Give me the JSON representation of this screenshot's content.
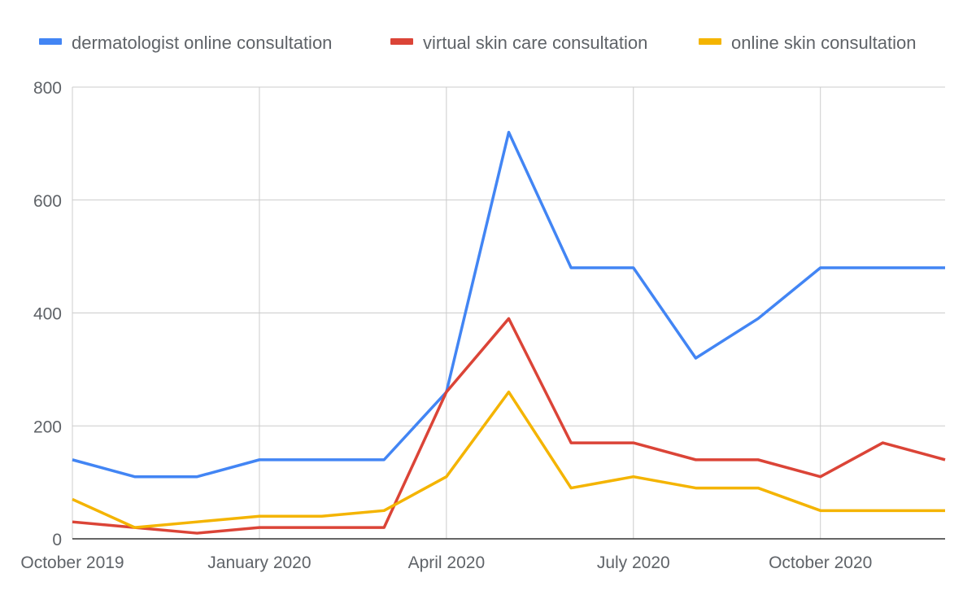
{
  "chart_data": {
    "type": "line",
    "title": "",
    "xlabel": "",
    "ylabel": "",
    "x": [
      "2019-10",
      "2019-11",
      "2019-12",
      "2020-01",
      "2020-02",
      "2020-03",
      "2020-04",
      "2020-05",
      "2020-06",
      "2020-07",
      "2020-08",
      "2020-09",
      "2020-10",
      "2020-11",
      "2020-12"
    ],
    "x_ticks": [
      {
        "index": 0,
        "label": "October 2019"
      },
      {
        "index": 3,
        "label": "January 2020"
      },
      {
        "index": 6,
        "label": "April 2020"
      },
      {
        "index": 9,
        "label": "July 2020"
      },
      {
        "index": 12,
        "label": "October 2020"
      }
    ],
    "ylim": [
      0,
      800
    ],
    "y_ticks": [
      0,
      200,
      400,
      600,
      800
    ],
    "grid": true,
    "legend_position": "top",
    "series": [
      {
        "name": "dermatologist online consultation",
        "color": "#4285f4",
        "values": [
          140,
          110,
          110,
          140,
          140,
          140,
          260,
          720,
          480,
          480,
          320,
          390,
          480,
          480,
          480
        ]
      },
      {
        "name": "virtual skin care consultation",
        "color": "#db4437",
        "values": [
          30,
          20,
          10,
          20,
          20,
          20,
          260,
          390,
          170,
          170,
          140,
          140,
          110,
          170,
          140
        ]
      },
      {
        "name": "online skin consultation",
        "color": "#f4b400",
        "values": [
          70,
          20,
          30,
          40,
          40,
          50,
          110,
          260,
          90,
          110,
          90,
          90,
          50,
          50,
          50
        ]
      }
    ]
  }
}
